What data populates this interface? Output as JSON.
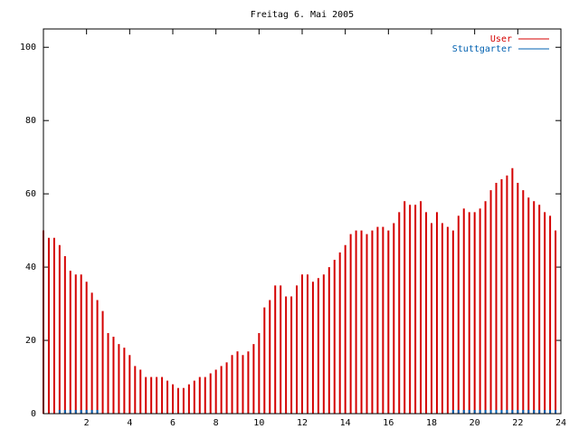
{
  "chart_data": {
    "type": "impulse",
    "title": "Freitag 6. Mai 2005",
    "x": [
      0,
      0.25,
      0.5,
      0.75,
      1,
      1.25,
      1.5,
      1.75,
      2,
      2.25,
      2.5,
      2.75,
      3,
      3.25,
      3.5,
      3.75,
      4,
      4.25,
      4.5,
      4.75,
      5,
      5.25,
      5.5,
      5.75,
      6,
      6.25,
      6.5,
      6.75,
      7,
      7.25,
      7.5,
      7.75,
      8,
      8.25,
      8.5,
      8.75,
      9,
      9.25,
      9.5,
      9.75,
      10,
      10.25,
      10.5,
      10.75,
      11,
      11.25,
      11.5,
      11.75,
      12,
      12.25,
      12.5,
      12.75,
      13,
      13.25,
      13.5,
      13.75,
      14,
      14.25,
      14.5,
      14.75,
      15,
      15.25,
      15.5,
      15.75,
      16,
      16.25,
      16.5,
      16.75,
      17,
      17.25,
      17.5,
      17.75,
      18,
      18.25,
      18.5,
      18.75,
      19,
      19.25,
      19.5,
      19.75,
      20,
      20.25,
      20.5,
      20.75,
      21,
      21.25,
      21.5,
      21.75,
      22,
      22.25,
      22.5,
      22.75,
      23,
      23.25,
      23.5,
      23.75
    ],
    "series": [
      {
        "name": "User",
        "color": "#d40000",
        "values": [
          50,
          48,
          48,
          46,
          43,
          39,
          38,
          38,
          36,
          33,
          31,
          28,
          22,
          21,
          19,
          18,
          16,
          13,
          12,
          10,
          10,
          10,
          10,
          9,
          8,
          7,
          7,
          8,
          9,
          10,
          10,
          11,
          12,
          13,
          14,
          16,
          17,
          16,
          17,
          19,
          22,
          29,
          31,
          35,
          35,
          32,
          32,
          35,
          38,
          38,
          36,
          37,
          38,
          40,
          42,
          44,
          46,
          49,
          50,
          50,
          49,
          50,
          51,
          51,
          50,
          52,
          55,
          58,
          57,
          57,
          58,
          55,
          52,
          55,
          52,
          51,
          50,
          54,
          56,
          55,
          55,
          56,
          58,
          61,
          63,
          64,
          65,
          67,
          63,
          61,
          59,
          58,
          57,
          55,
          54,
          50
        ]
      },
      {
        "name": "Stuttgarter",
        "color": "#0060b0",
        "values": [
          0,
          0,
          0,
          1,
          1,
          1,
          1,
          1,
          1,
          1,
          1,
          0,
          0,
          0,
          0,
          0,
          0,
          0,
          0,
          0,
          0,
          0,
          0,
          0,
          0,
          0,
          0,
          0,
          0,
          0,
          0,
          0,
          0,
          0,
          0,
          0,
          0,
          0,
          0,
          0,
          0,
          0,
          0,
          0,
          0,
          0,
          0,
          0,
          0,
          0,
          0,
          0,
          0,
          0,
          0,
          0,
          0,
          0,
          0,
          0,
          0,
          0,
          0,
          0,
          0,
          0,
          0,
          0,
          0,
          0,
          0,
          0,
          0,
          0,
          0,
          0,
          1,
          1,
          1,
          1,
          1,
          1,
          1,
          1,
          1,
          1,
          1,
          1,
          1,
          1,
          1,
          1,
          1,
          1,
          1,
          1
        ]
      }
    ],
    "xlim": [
      0,
      24
    ],
    "xticks": [
      2,
      4,
      6,
      8,
      10,
      12,
      14,
      16,
      18,
      20,
      22,
      24
    ],
    "ylim": [
      0,
      105
    ],
    "yticks": [
      0,
      20,
      40,
      60,
      80,
      100
    ]
  }
}
